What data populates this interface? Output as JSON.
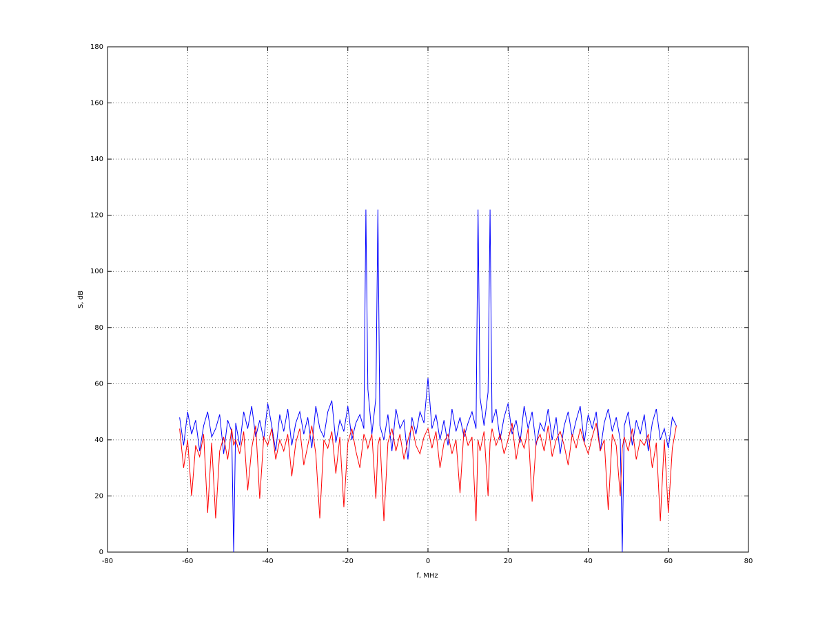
{
  "chart_data": {
    "type": "line",
    "xlabel": "f, MHz",
    "ylabel": "S, dB",
    "xlim": [
      -80,
      80
    ],
    "xticks": [
      -80,
      -60,
      -40,
      -20,
      0,
      20,
      40,
      60,
      80
    ],
    "ylim": [
      0,
      180
    ],
    "yticks": [
      0,
      20,
      40,
      60,
      80,
      100,
      120,
      140,
      160,
      180
    ],
    "grid": true,
    "x": [
      -62,
      -61,
      -60,
      -59,
      -58,
      -57,
      -56,
      -55,
      -54,
      -53,
      -52,
      -51,
      -50,
      -49,
      -48.5,
      -48,
      -47,
      -46,
      -45,
      -44,
      -43,
      -42,
      -41,
      -40,
      -39,
      -38,
      -37,
      -36,
      -35,
      -34,
      -33,
      -32,
      -31,
      -30,
      -29,
      -28,
      -27,
      -26,
      -25,
      -24,
      -23,
      -22,
      -21,
      -20,
      -19,
      -18,
      -17,
      -16,
      -15.5,
      -15,
      -14,
      -13,
      -12.5,
      -12,
      -11,
      -10,
      -9,
      -8,
      -7,
      -6,
      -5,
      -4,
      -3,
      -2,
      -1,
      0,
      1,
      2,
      3,
      4,
      5,
      6,
      7,
      8,
      9,
      10,
      11,
      12,
      12.5,
      13,
      14,
      15,
      15.5,
      16,
      17,
      18,
      19,
      20,
      21,
      22,
      23,
      24,
      25,
      26,
      27,
      28,
      29,
      30,
      31,
      32,
      33,
      34,
      35,
      36,
      37,
      38,
      39,
      40,
      41,
      42,
      43,
      44,
      45,
      46,
      47,
      48,
      48.5,
      49,
      50,
      51,
      52,
      53,
      54,
      55,
      56,
      57,
      58,
      59,
      60,
      61,
      62
    ],
    "series": [
      {
        "color": "#0000ff",
        "values": [
          48,
          38,
          50,
          42,
          47,
          36,
          45,
          50,
          41,
          44,
          49,
          35,
          47,
          43,
          0,
          46,
          38,
          50,
          44,
          52,
          41,
          47,
          40,
          53,
          45,
          36,
          49,
          43,
          51,
          38,
          46,
          50,
          42,
          48,
          37,
          52,
          44,
          41,
          50,
          54,
          39,
          47,
          43,
          52,
          40,
          46,
          49,
          44,
          122,
          58,
          42,
          55,
          122,
          45,
          40,
          49,
          36,
          51,
          44,
          47,
          33,
          48,
          42,
          50,
          46,
          62,
          44,
          49,
          40,
          47,
          38,
          51,
          43,
          48,
          41,
          46,
          50,
          44,
          122,
          55,
          45,
          57,
          122,
          46,
          51,
          40,
          48,
          53,
          42,
          47,
          39,
          52,
          44,
          50,
          38,
          46,
          43,
          51,
          40,
          48,
          35,
          45,
          50,
          41,
          47,
          52,
          39,
          49,
          44,
          50,
          36,
          46,
          51,
          43,
          48,
          40,
          0,
          45,
          50,
          38,
          47,
          42,
          49,
          36,
          46,
          51,
          40,
          44,
          37,
          48,
          45
        ]
      },
      {
        "color": "#ff0000",
        "values": [
          44,
          30,
          40,
          20,
          38,
          34,
          42,
          14,
          39,
          12,
          36,
          41,
          33,
          44,
          38,
          40,
          35,
          43,
          22,
          37,
          45,
          19,
          41,
          38,
          44,
          33,
          40,
          36,
          42,
          27,
          39,
          44,
          31,
          38,
          45,
          35,
          12,
          40,
          37,
          43,
          28,
          41,
          16,
          39,
          44,
          36,
          30,
          42,
          40,
          37,
          42,
          19,
          38,
          41,
          11,
          39,
          44,
          36,
          42,
          33,
          40,
          45,
          38,
          35,
          41,
          44,
          37,
          43,
          30,
          39,
          42,
          35,
          40,
          21,
          44,
          38,
          41,
          11,
          40,
          36,
          43,
          20,
          39,
          44,
          38,
          42,
          35,
          40,
          46,
          33,
          41,
          37,
          44,
          18,
          39,
          42,
          36,
          45,
          34,
          40,
          43,
          38,
          31,
          42,
          37,
          44,
          39,
          35,
          41,
          46,
          36,
          40,
          15,
          42,
          38,
          20,
          37,
          41,
          36,
          44,
          33,
          40,
          38,
          42,
          30,
          39,
          11,
          40,
          14,
          37,
          45
        ]
      }
    ]
  }
}
